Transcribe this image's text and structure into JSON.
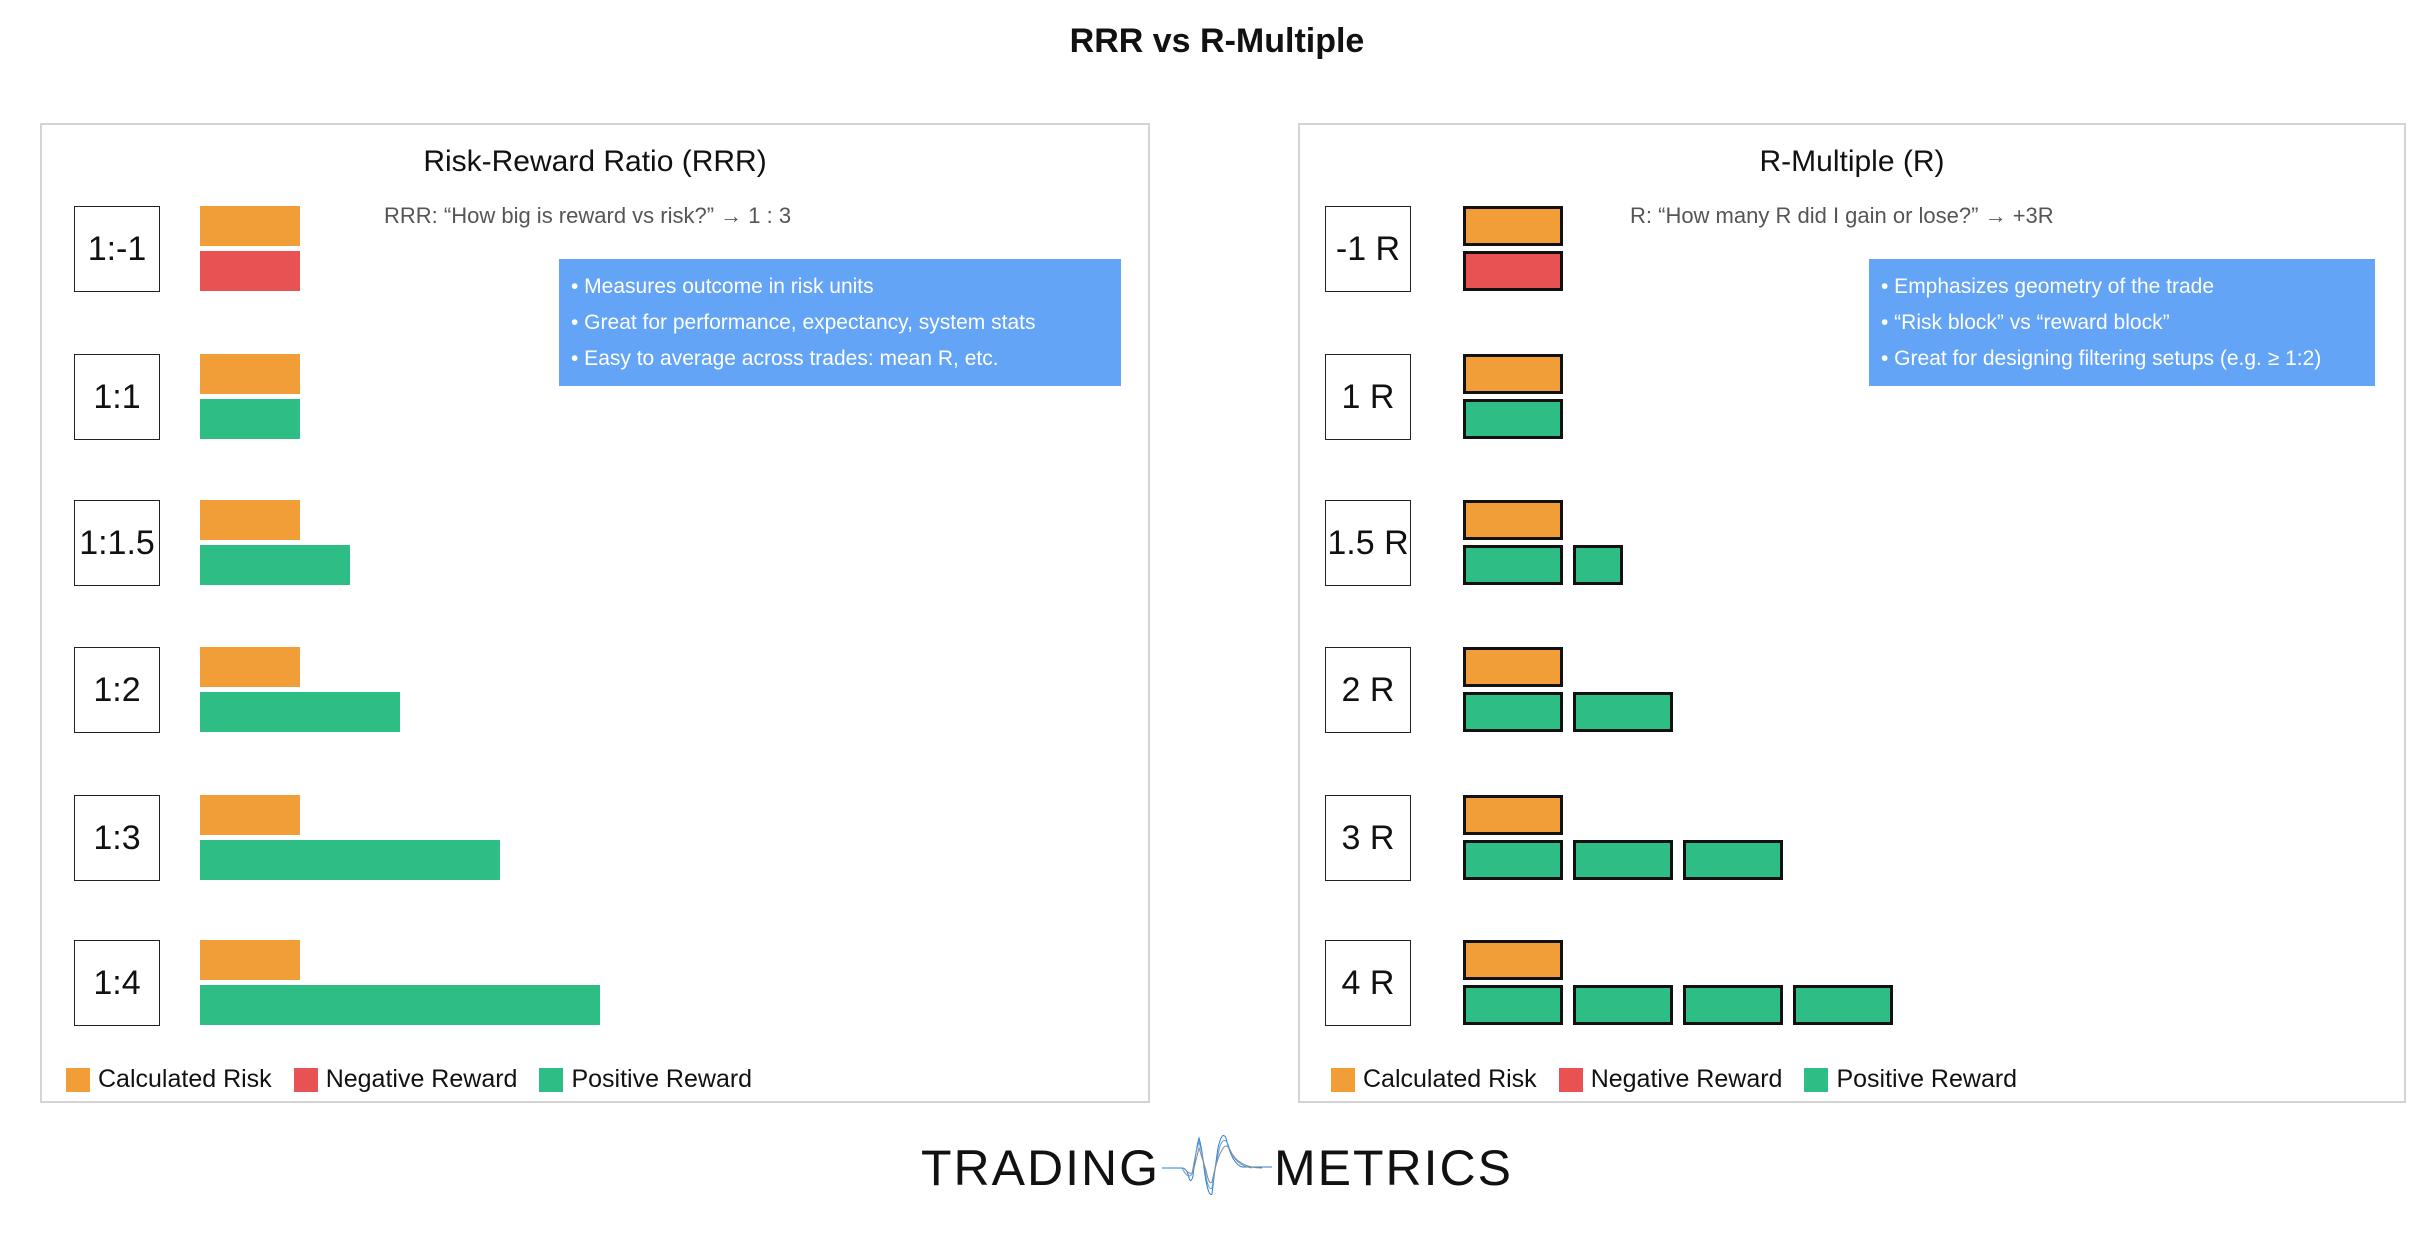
{
  "title": "RRR vs R-Multiple",
  "colors": {
    "risk": "#f19e38",
    "negative": "#e95252",
    "positive": "#2ebd85",
    "note_bg": "#63a4f7"
  },
  "left": {
    "title": "Risk-Reward Ratio (RRR)",
    "question": "RRR: “How big is reward vs risk?” → 1 : 3",
    "notes": [
      "• Measures outcome in risk units",
      "• Great for performance, expectancy, system stats",
      "• Easy to average across trades: mean R, etc."
    ],
    "rows": [
      {
        "label": "1:-1",
        "risk": 1,
        "reward": -1
      },
      {
        "label": "1:1",
        "risk": 1,
        "reward": 1
      },
      {
        "label": "1:1.5",
        "risk": 1,
        "reward": 1.5
      },
      {
        "label": "1:2",
        "risk": 1,
        "reward": 2
      },
      {
        "label": "1:3",
        "risk": 1,
        "reward": 3
      },
      {
        "label": "1:4",
        "risk": 1,
        "reward": 4
      }
    ],
    "legend": [
      "Calculated Risk",
      "Negative Reward",
      "Positive Reward"
    ]
  },
  "right": {
    "title": "R-Multiple (R)",
    "question": "R: “How many R did I gain or lose?” → +3R",
    "notes": [
      "• Emphasizes geometry of the trade",
      "• “Risk block” vs “reward block”",
      "• Great for designing filtering setups (e.g. ≥ 1:2)"
    ],
    "rows": [
      {
        "label": "-1 R",
        "risk": 1,
        "reward": -1
      },
      {
        "label": "1 R",
        "risk": 1,
        "reward": 1
      },
      {
        "label": "1.5 R",
        "risk": 1,
        "reward": 1.5
      },
      {
        "label": "2 R",
        "risk": 1,
        "reward": 2
      },
      {
        "label": "3 R",
        "risk": 1,
        "reward": 3
      },
      {
        "label": "4 R",
        "risk": 1,
        "reward": 4
      }
    ],
    "legend": [
      "Calculated Risk",
      "Negative Reward",
      "Positive Reward"
    ]
  },
  "logo": {
    "left": "TRADING",
    "right": "METRICS"
  }
}
